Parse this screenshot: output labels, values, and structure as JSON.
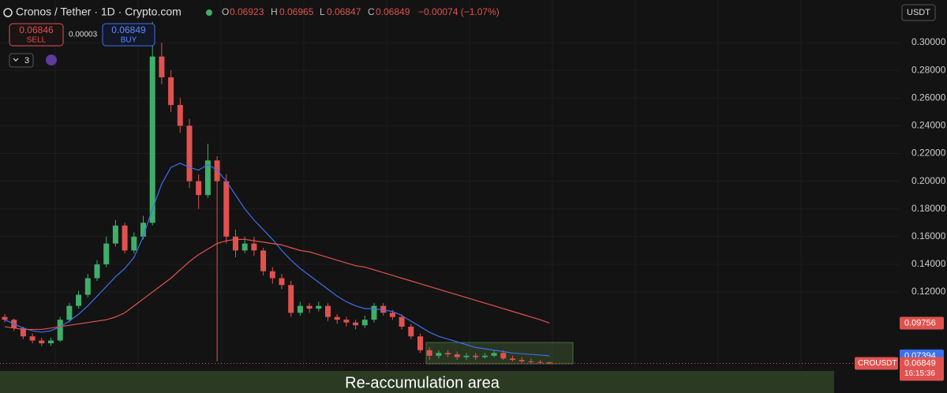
{
  "header": {
    "title": "Cronos / Tether · 1D · Crypto.com",
    "o": "O",
    "h": "H",
    "l": "L",
    "c": "C",
    "change": "−0.00074 (−1.07%)",
    "currency": "USDT",
    "indicators": "3"
  },
  "trade": {
    "sell_price": "0.06846",
    "sell": "SELL",
    "spread": "0.00003",
    "buy_price": "0.06849",
    "buy": "BUY"
  },
  "tags": {
    "symbol": "CROUSDT",
    "countdown": "16:15:36"
  },
  "annotation": "Re-accumulation area",
  "chart_data": {
    "type": "candlestick",
    "open": [
      0.102,
      0.1,
      0.094,
      0.088,
      0.085,
      0.083,
      0.085,
      0.1,
      0.11,
      0.118,
      0.13,
      0.14,
      0.155,
      0.168,
      0.15,
      0.16,
      0.17,
      0.29,
      0.275,
      0.255,
      0.24,
      0.2,
      0.19,
      0.215,
      0.2,
      0.16,
      0.15,
      0.155,
      0.15,
      0.135,
      0.13,
      0.125,
      0.105,
      0.11,
      0.108,
      0.11,
      0.102,
      0.1,
      0.098,
      0.096,
      0.1,
      0.11,
      0.105,
      0.102,
      0.095,
      0.088,
      0.078,
      0.074,
      0.076,
      0.075,
      0.073,
      0.074,
      0.073,
      0.074,
      0.076,
      0.072,
      0.071,
      0.07,
      0.0695,
      0.06923
    ],
    "high": [
      0.104,
      0.101,
      0.095,
      0.09,
      0.087,
      0.087,
      0.102,
      0.112,
      0.121,
      0.133,
      0.143,
      0.16,
      0.172,
      0.17,
      0.163,
      0.175,
      0.315,
      0.3,
      0.28,
      0.26,
      0.245,
      0.205,
      0.227,
      0.218,
      0.205,
      0.165,
      0.16,
      0.16,
      0.152,
      0.138,
      0.133,
      0.128,
      0.113,
      0.112,
      0.113,
      0.112,
      0.104,
      0.102,
      0.1,
      0.103,
      0.112,
      0.112,
      0.107,
      0.104,
      0.097,
      0.09,
      0.08,
      0.078,
      0.078,
      0.077,
      0.076,
      0.076,
      0.076,
      0.078,
      0.078,
      0.074,
      0.073,
      0.072,
      0.071,
      0.06965
    ],
    "low": [
      0.098,
      0.092,
      0.086,
      0.083,
      0.081,
      0.081,
      0.084,
      0.098,
      0.108,
      0.116,
      0.128,
      0.138,
      0.153,
      0.148,
      0.148,
      0.158,
      0.168,
      0.27,
      0.25,
      0.235,
      0.195,
      0.18,
      0.188,
      0.07,
      0.155,
      0.145,
      0.148,
      0.146,
      0.132,
      0.126,
      0.122,
      0.102,
      0.103,
      0.105,
      0.106,
      0.099,
      0.097,
      0.095,
      0.093,
      0.094,
      0.098,
      0.103,
      0.1,
      0.093,
      0.086,
      0.076,
      0.071,
      0.072,
      0.073,
      0.071,
      0.071,
      0.071,
      0.072,
      0.073,
      0.071,
      0.07,
      0.069,
      0.068,
      0.068,
      0.06847
    ],
    "close": [
      0.1,
      0.094,
      0.088,
      0.085,
      0.083,
      0.085,
      0.1,
      0.11,
      0.118,
      0.13,
      0.14,
      0.155,
      0.168,
      0.15,
      0.16,
      0.17,
      0.29,
      0.275,
      0.255,
      0.24,
      0.2,
      0.19,
      0.215,
      0.2,
      0.16,
      0.15,
      0.155,
      0.15,
      0.135,
      0.13,
      0.125,
      0.105,
      0.11,
      0.108,
      0.11,
      0.102,
      0.1,
      0.098,
      0.096,
      0.1,
      0.11,
      0.105,
      0.102,
      0.095,
      0.088,
      0.078,
      0.074,
      0.076,
      0.075,
      0.073,
      0.074,
      0.073,
      0.074,
      0.076,
      0.072,
      0.071,
      0.07,
      0.0695,
      0.069,
      0.06849
    ],
    "up_color": "#3fae6a",
    "down_color": "#e0524f",
    "series": [
      {
        "color": "#3b6ff0",
        "values": [
          0.1,
          0.097,
          0.094,
          0.092,
          0.091,
          0.092,
          0.095,
          0.099,
          0.104,
          0.11,
          0.117,
          0.124,
          0.131,
          0.137,
          0.145,
          0.16,
          0.18,
          0.198,
          0.21,
          0.213,
          0.21,
          0.208,
          0.212,
          0.208,
          0.2,
          0.19,
          0.18,
          0.172,
          0.165,
          0.158,
          0.15,
          0.143,
          0.137,
          0.132,
          0.127,
          0.122,
          0.117,
          0.113,
          0.11,
          0.108,
          0.108,
          0.107,
          0.106,
          0.103,
          0.099,
          0.095,
          0.091,
          0.088,
          0.086,
          0.084,
          0.082,
          0.08,
          0.079,
          0.078,
          0.077,
          0.076,
          0.0755,
          0.075,
          0.0745,
          0.07394
        ]
      },
      {
        "color": "#e0524f",
        "values": [
          0.095,
          0.094,
          0.093,
          0.093,
          0.093,
          0.094,
          0.095,
          0.096,
          0.097,
          0.098,
          0.099,
          0.1,
          0.102,
          0.105,
          0.11,
          0.115,
          0.12,
          0.125,
          0.13,
          0.136,
          0.142,
          0.147,
          0.151,
          0.155,
          0.157,
          0.158,
          0.158,
          0.157,
          0.156,
          0.155,
          0.154,
          0.152,
          0.15,
          0.149,
          0.147,
          0.145,
          0.143,
          0.141,
          0.139,
          0.138,
          0.136,
          0.134,
          0.132,
          0.13,
          0.128,
          0.126,
          0.124,
          0.122,
          0.12,
          0.118,
          0.116,
          0.114,
          0.112,
          0.11,
          0.108,
          0.106,
          0.104,
          0.102,
          0.1,
          0.09756
        ]
      }
    ],
    "ylim": [
      0.0642,
      0.3308
    ],
    "yticks": [
      {
        "value": 0.12,
        "label": "0.12000"
      },
      {
        "value": 0.14,
        "label": "0.14000"
      },
      {
        "value": 0.16,
        "label": "0.16000"
      },
      {
        "value": 0.18,
        "label": "0.18000"
      },
      {
        "value": 0.2,
        "label": "0.20000"
      },
      {
        "value": 0.22,
        "label": "0.22000"
      },
      {
        "value": 0.24,
        "label": "0.24000"
      },
      {
        "value": 0.26,
        "label": "0.26000"
      },
      {
        "value": 0.28,
        "label": "0.28000"
      },
      {
        "value": 0.3,
        "label": "0.30000"
      }
    ],
    "grid": true
  }
}
